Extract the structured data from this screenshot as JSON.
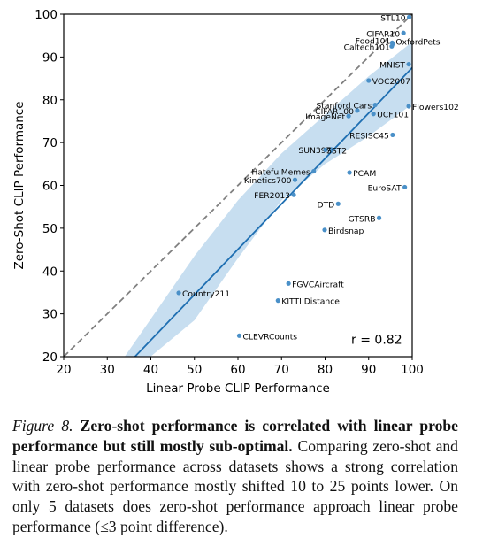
{
  "chart_data": {
    "type": "scatter",
    "xlabel": "Linear Probe CLIP Performance",
    "ylabel": "Zero-Shot CLIP Performance",
    "xlim": [
      20,
      100
    ],
    "ylim": [
      20,
      100
    ],
    "xticks": [
      20,
      30,
      40,
      50,
      60,
      70,
      80,
      90,
      100
    ],
    "yticks": [
      20,
      30,
      40,
      50,
      60,
      70,
      80,
      90,
      100
    ],
    "grid": false,
    "point_color": "#4a90c8",
    "fit_line_color": "#1f6fb2",
    "band_color": "#b9d6ec",
    "diagonal_color": "#808080",
    "annotation": "r = 0.82",
    "fit_line": {
      "x": [
        34,
        100
      ],
      "y": [
        17.5,
        87.5
      ]
    },
    "band": {
      "x": [
        34,
        50,
        60,
        70,
        80,
        90,
        100
      ],
      "upper": [
        20.0,
        43.5,
        56.5,
        67.5,
        76.5,
        85.5,
        93.5
      ],
      "lower": [
        15.0,
        28.5,
        43.0,
        56.5,
        65.0,
        71.5,
        79.0
      ]
    },
    "points": [
      {
        "label": "STL10",
        "x": 99.3,
        "y": 99.3
      },
      {
        "label": "CIFAR10",
        "x": 98.0,
        "y": 95.6
      },
      {
        "label": "Food101",
        "x": 95.4,
        "y": 93.3
      },
      {
        "label": "OxfordPets",
        "x": 95.6,
        "y": 93.1
      },
      {
        "label": "Caltech101",
        "x": 95.3,
        "y": 92.5
      },
      {
        "label": "MNIST",
        "x": 99.2,
        "y": 88.3
      },
      {
        "label": "VOC2007",
        "x": 90.0,
        "y": 84.5
      },
      {
        "label": "Stanford Cars",
        "x": 91.5,
        "y": 78.8
      },
      {
        "label": "Flowers102",
        "x": 99.2,
        "y": 78.5
      },
      {
        "label": "CIFAR100",
        "x": 87.4,
        "y": 77.5
      },
      {
        "label": "UCF101",
        "x": 91.1,
        "y": 76.7
      },
      {
        "label": "ImageNet",
        "x": 85.4,
        "y": 76.2
      },
      {
        "label": "RESISC45",
        "x": 95.5,
        "y": 71.8
      },
      {
        "label": "SUN397",
        "x": 81.4,
        "y": 68.4
      },
      {
        "label": "SST2",
        "x": 80.1,
        "y": 68.3
      },
      {
        "label": "HatefulMemes",
        "x": 77.4,
        "y": 63.3
      },
      {
        "label": "PCAM",
        "x": 85.6,
        "y": 63.0
      },
      {
        "label": "Kinetics700",
        "x": 73.1,
        "y": 61.3
      },
      {
        "label": "EuroSAT",
        "x": 98.3,
        "y": 59.6
      },
      {
        "label": "FER2013",
        "x": 72.8,
        "y": 57.8
      },
      {
        "label": "DTD",
        "x": 83.0,
        "y": 55.7
      },
      {
        "label": "GTSRB",
        "x": 92.4,
        "y": 52.4
      },
      {
        "label": "Birdsnap",
        "x": 79.9,
        "y": 49.6
      },
      {
        "label": "FGVCAircraft",
        "x": 71.6,
        "y": 37.1
      },
      {
        "label": "Country211",
        "x": 46.4,
        "y": 34.9
      },
      {
        "label": "KITTI Distance",
        "x": 69.2,
        "y": 33.1
      },
      {
        "label": "CLEVRCounts",
        "x": 60.3,
        "y": 24.9
      }
    ]
  },
  "caption": {
    "figure_label": "Figure 8.",
    "bold_text": "Zero-shot performance is correlated with linear probe performance but still mostly sub-optimal.",
    "body_text": "Comparing zero-shot and linear probe performance across datasets shows a strong correlation with zero-shot performance mostly shifted 10 to 25 points lower. On only 5 datasets does zero-shot performance approach linear probe performance (≤3 point difference)."
  }
}
